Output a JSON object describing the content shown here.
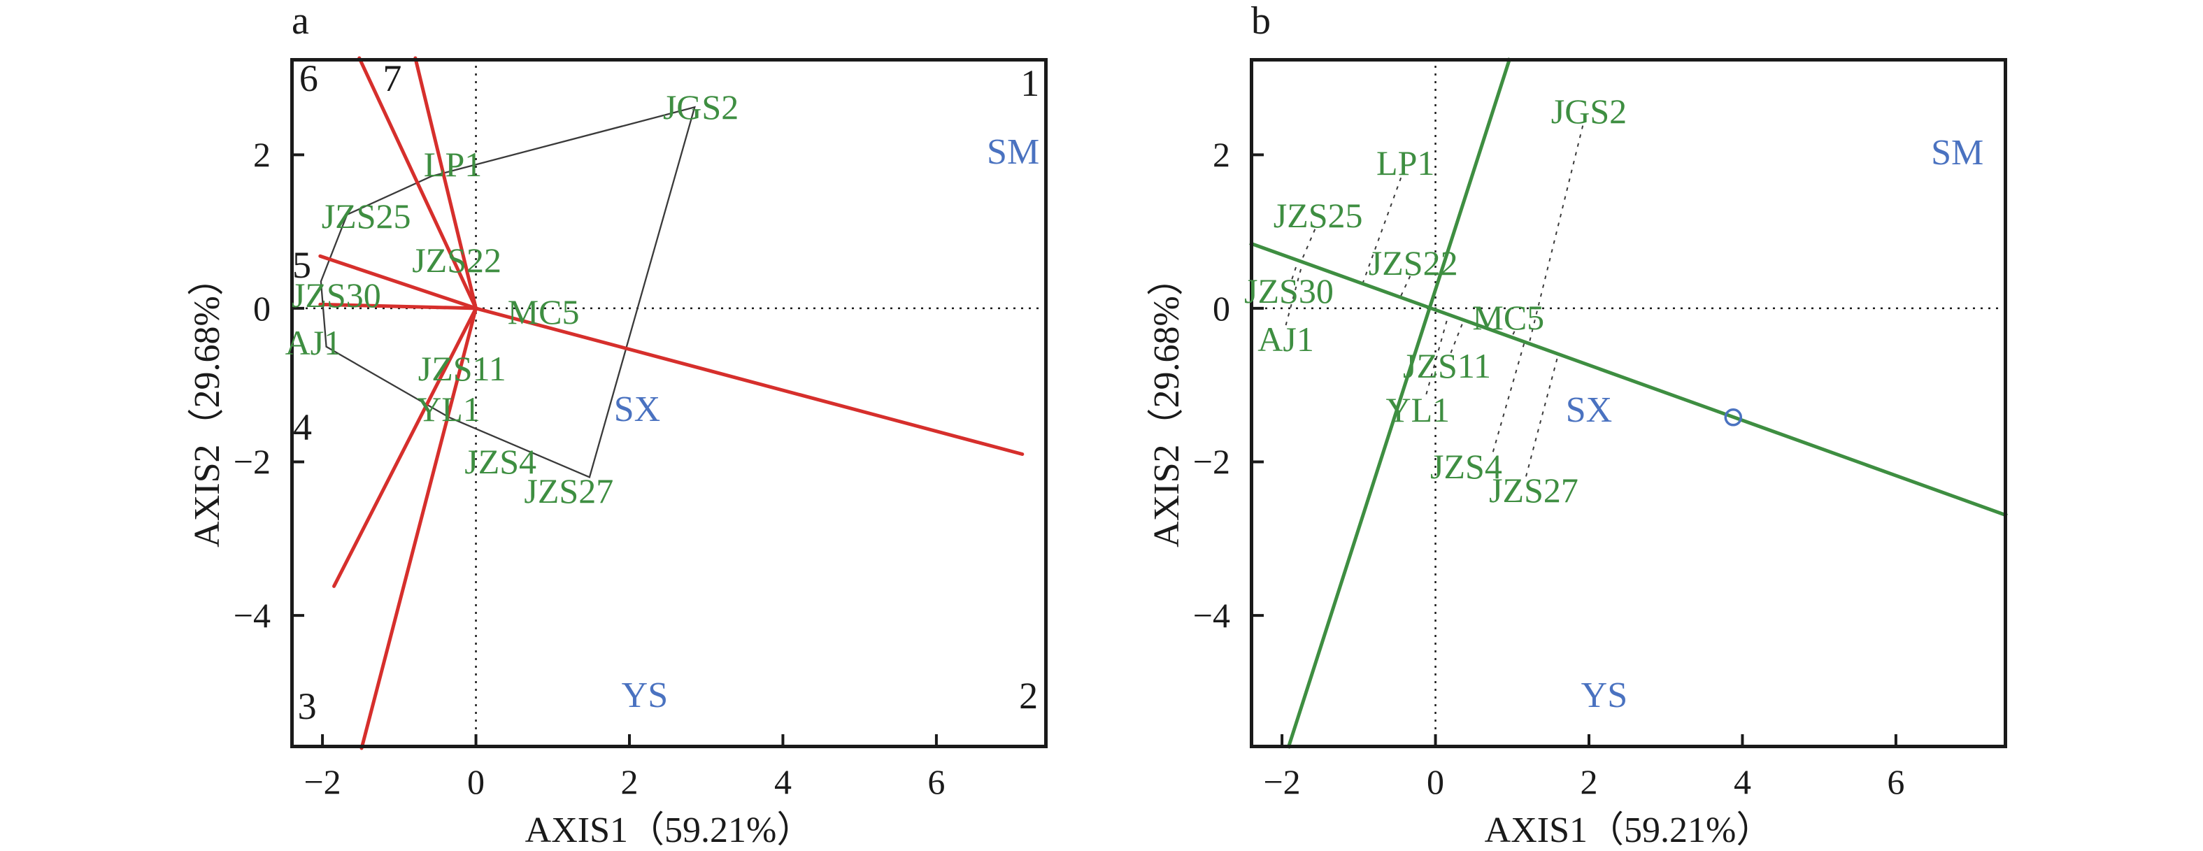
{
  "colors": {
    "vector_red": "#d62f2c",
    "site_green": "#3e8e41",
    "line_green": "#3e8e41",
    "region_blue": "#4a72c0",
    "marker_blue": "#4a72c0",
    "axis_black": "#1a1a1a",
    "hull_gray": "#3a3a3a",
    "leader_gray": "#3a3a3a",
    "background": "#ffffff"
  },
  "chart_data": {
    "panels": [
      {
        "id": "a",
        "panel_letter": "a",
        "type": "scatter",
        "title": "",
        "xlabel": "AXIS1（59.21%）",
        "ylabel": "AXIS2（29.68%）",
        "xlim": [
          -2.42,
          7.45
        ],
        "ylim": [
          -5.73,
          3.26
        ],
        "grid": false,
        "x_ticks": [
          {
            "v": -2,
            "label": "−2"
          },
          {
            "v": 0,
            "label": "0"
          },
          {
            "v": 2,
            "label": "2"
          },
          {
            "v": 4,
            "label": "4"
          },
          {
            "v": 6,
            "label": "6"
          }
        ],
        "y_ticks": [
          {
            "v": 2,
            "label": "2"
          },
          {
            "v": 0,
            "label": "0"
          },
          {
            "v": -2,
            "label": "−2"
          },
          {
            "v": -4,
            "label": "−4"
          }
        ],
        "sites": [
          {
            "label": "JGS2",
            "x": 2.93,
            "y": 2.62
          },
          {
            "label": "LP1",
            "x": -0.3,
            "y": 1.88
          },
          {
            "label": "JZS25",
            "x": -1.43,
            "y": 1.2
          },
          {
            "label": "JZS22",
            "x": -0.25,
            "y": 0.63
          },
          {
            "label": "JZS30",
            "x": -1.82,
            "y": 0.17
          },
          {
            "label": "AJ1",
            "x": -2.12,
            "y": -0.45
          },
          {
            "label": "MC5",
            "x": 0.88,
            "y": -0.05
          },
          {
            "label": "JZS11",
            "x": -0.18,
            "y": -0.78
          },
          {
            "label": "YL1",
            "x": -0.36,
            "y": -1.31
          },
          {
            "label": "JZS4",
            "x": 0.32,
            "y": -2.0
          },
          {
            "label": "JZS27",
            "x": 1.21,
            "y": -2.38
          }
        ],
        "regions": [
          {
            "label": "SM",
            "x": 7.0,
            "y": 2.03
          },
          {
            "label": "SX",
            "x": 2.1,
            "y": -1.32
          },
          {
            "label": "YS",
            "x": 2.2,
            "y": -5.05
          }
        ],
        "corner_numbers": [
          {
            "label": "6",
            "x": -2.18,
            "y": 3.0
          },
          {
            "label": "7",
            "x": -1.09,
            "y": 3.0
          },
          {
            "label": "1",
            "x": 7.22,
            "y": 2.93
          },
          {
            "label": "5",
            "x": -2.27,
            "y": 0.56
          },
          {
            "label": "4",
            "x": -2.26,
            "y": -1.55
          },
          {
            "label": "3",
            "x": -2.2,
            "y": -5.18
          },
          {
            "label": "2",
            "x": 7.2,
            "y": -5.05
          }
        ],
        "origin_vectors": [
          {
            "x": -1.52,
            "y": 3.26
          },
          {
            "x": -0.79,
            "y": 3.26
          },
          {
            "x": -2.03,
            "y": 0.68
          },
          {
            "x": -2.03,
            "y": 0.05
          },
          {
            "x": 7.12,
            "y": -1.9
          },
          {
            "x": -1.85,
            "y": -3.62
          },
          {
            "x": -1.49,
            "y": -5.73
          }
        ],
        "hull": [
          [
            -1.68,
            1.22
          ],
          [
            -0.58,
            1.72
          ],
          [
            2.85,
            2.62
          ],
          [
            1.48,
            -2.2
          ],
          [
            -0.35,
            -1.42
          ],
          [
            -1.95,
            -0.5
          ],
          [
            -2.02,
            0.35
          ]
        ]
      },
      {
        "id": "b",
        "panel_letter": "b",
        "type": "scatter",
        "title": "",
        "xlabel": "AXIS1（59.21%）",
        "ylabel": "AXIS2（29.68%）",
        "xlim": [
          -2.42,
          7.45
        ],
        "ylim": [
          -5.73,
          3.26
        ],
        "grid": false,
        "x_ticks": [
          {
            "v": -2,
            "label": "−2"
          },
          {
            "v": 0,
            "label": "0"
          },
          {
            "v": 2,
            "label": "2"
          },
          {
            "v": 4,
            "label": "4"
          },
          {
            "v": 6,
            "label": "6"
          }
        ],
        "y_ticks": [
          {
            "v": 2,
            "label": "2"
          },
          {
            "v": 0,
            "label": "0"
          },
          {
            "v": -2,
            "label": "−2"
          },
          {
            "v": -4,
            "label": "−4"
          }
        ],
        "sites": [
          {
            "label": "JGS2",
            "x": 2.0,
            "y": 2.57
          },
          {
            "label": "LP1",
            "x": -0.39,
            "y": 1.89
          },
          {
            "label": "JZS25",
            "x": -1.53,
            "y": 1.21
          },
          {
            "label": "JZS22",
            "x": -0.29,
            "y": 0.59
          },
          {
            "label": "JZS30",
            "x": -1.91,
            "y": 0.23
          },
          {
            "label": "AJ1",
            "x": -1.95,
            "y": -0.4
          },
          {
            "label": "MC5",
            "x": 0.95,
            "y": -0.12
          },
          {
            "label": "JZS11",
            "x": 0.15,
            "y": -0.75
          },
          {
            "label": "YL1",
            "x": -0.23,
            "y": -1.32
          },
          {
            "label": "JZS4",
            "x": 0.4,
            "y": -2.06
          },
          {
            "label": "JZS27",
            "x": 1.28,
            "y": -2.37
          }
        ],
        "regions": [
          {
            "label": "SM",
            "x": 6.8,
            "y": 2.02
          },
          {
            "label": "SX",
            "x": 2.0,
            "y": -1.33
          },
          {
            "label": "YS",
            "x": 2.2,
            "y": -5.05
          }
        ],
        "corner_numbers": [],
        "gradient_lines": [
          {
            "name": "steep",
            "x1": -1.92,
            "y1": -5.73,
            "x2": 0.97,
            "y2": 3.26
          },
          {
            "name": "shallow",
            "x1": -2.42,
            "y1": 0.85,
            "x2": 7.45,
            "y2": -2.7
          }
        ],
        "leaders": [
          {
            "site": "JGS2",
            "x1": 1.92,
            "y1": 2.38,
            "x2": 1.22,
            "y2": -0.46
          },
          {
            "site": "LP1",
            "x1": -0.45,
            "y1": 1.7,
            "x2": -0.95,
            "y2": 0.32
          },
          {
            "site": "JZS25",
            "x1": -1.57,
            "y1": 1.03,
            "x2": -1.75,
            "y2": 0.61
          },
          {
            "site": "JZS22",
            "x1": -0.33,
            "y1": 0.42,
            "x2": -0.46,
            "y2": 0.14
          },
          {
            "site": "JZS30",
            "x1": -1.87,
            "y1": 0.38,
            "x2": -1.79,
            "y2": 0.62
          },
          {
            "site": "AJ1",
            "x1": -1.95,
            "y1": -0.22,
            "x2": -1.73,
            "y2": 0.6
          },
          {
            "site": "JZS11",
            "x1": 0.2,
            "y1": -0.58,
            "x2": 0.37,
            "y2": -0.15
          },
          {
            "site": "YL1",
            "x1": -0.12,
            "y1": -1.12,
            "x2": 0.17,
            "y2": -0.08
          },
          {
            "site": "MC5",
            "x1": 1.03,
            "y1": -0.3,
            "x2": 0.99,
            "y2": -0.38
          },
          {
            "site": "JZS4",
            "x1": 0.75,
            "y1": -1.87,
            "x2": 1.16,
            "y2": -0.44
          },
          {
            "site": "JZS27",
            "x1": 1.18,
            "y1": -2.19,
            "x2": 1.6,
            "y2": -0.6
          }
        ],
        "marker": {
          "shape": "circle",
          "x": 3.88,
          "y": -1.42
        }
      }
    ]
  }
}
